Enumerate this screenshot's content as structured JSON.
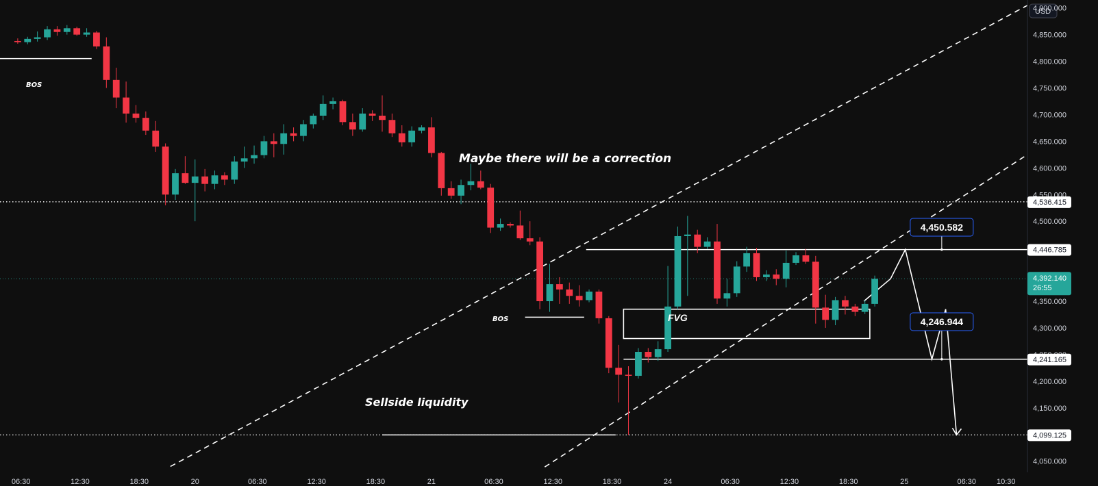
{
  "currency": "USD",
  "colors": {
    "background": "#0f0f0f",
    "up": "#26a69a",
    "down": "#f23645",
    "line": "#ffffff",
    "axis_text": "#d1d4dc",
    "label_border": "#2962ff"
  },
  "chart_data": {
    "type": "candlestick",
    "y_ticks": [
      "4,900.000",
      "4,850.000",
      "4,800.000",
      "4,750.000",
      "4,700.000",
      "4,650.000",
      "4,600.000",
      "4,550.000",
      "4,500.000",
      "4,450.000",
      "4,400.000",
      "4,350.000",
      "4,300.000",
      "4,250.000",
      "4,200.000",
      "4,150.000",
      "4,100.000",
      "4,050.000"
    ],
    "y_tick_values": [
      4900,
      4850,
      4800,
      4750,
      4700,
      4650,
      4600,
      4550,
      4500,
      4450,
      4400,
      4350,
      4300,
      4250,
      4200,
      4150,
      4100,
      4050
    ],
    "ylim": [
      4029,
      4915
    ],
    "x_ticks": [
      "06:30",
      "12:30",
      "18:30",
      "20",
      "06:30",
      "12:30",
      "18:30",
      "21",
      "06:30",
      "12:30",
      "18:30",
      "24",
      "06:30",
      "12:30",
      "18:30",
      "25",
      "06:30",
      "10:30"
    ],
    "x_tick_units": [
      0.33,
      6.33,
      12.33,
      18,
      24.33,
      30.33,
      36.33,
      42,
      48.33,
      54.33,
      60.33,
      66,
      72.33,
      78.33,
      84.33,
      90,
      96.33,
      100.33
    ],
    "xlim": [
      -1.8,
      102.5
    ],
    "candles": [
      {
        "o": 4838,
        "h": 4843,
        "l": 4833,
        "c": 4836
      },
      {
        "o": 4836,
        "h": 4846,
        "l": 4832,
        "c": 4842
      },
      {
        "o": 4842,
        "h": 4856,
        "l": 4837,
        "c": 4845
      },
      {
        "o": 4845,
        "h": 4866,
        "l": 4840,
        "c": 4860
      },
      {
        "o": 4860,
        "h": 4866,
        "l": 4848,
        "c": 4855
      },
      {
        "o": 4855,
        "h": 4868,
        "l": 4850,
        "c": 4862
      },
      {
        "o": 4862,
        "h": 4865,
        "l": 4848,
        "c": 4850
      },
      {
        "o": 4850,
        "h": 4862,
        "l": 4846,
        "c": 4854
      },
      {
        "o": 4854,
        "h": 4857,
        "l": 4823,
        "c": 4828
      },
      {
        "o": 4828,
        "h": 4845,
        "l": 4750,
        "c": 4765
      },
      {
        "o": 4765,
        "h": 4788,
        "l": 4712,
        "c": 4732
      },
      {
        "o": 4732,
        "h": 4762,
        "l": 4685,
        "c": 4702
      },
      {
        "o": 4702,
        "h": 4718,
        "l": 4685,
        "c": 4694
      },
      {
        "o": 4694,
        "h": 4706,
        "l": 4662,
        "c": 4670
      },
      {
        "o": 4670,
        "h": 4688,
        "l": 4630,
        "c": 4640
      },
      {
        "o": 4640,
        "h": 4646,
        "l": 4530,
        "c": 4550
      },
      {
        "o": 4550,
        "h": 4598,
        "l": 4540,
        "c": 4590
      },
      {
        "o": 4590,
        "h": 4622,
        "l": 4570,
        "c": 4572
      },
      {
        "o": 4572,
        "h": 4616,
        "l": 4500,
        "c": 4584
      },
      {
        "o": 4584,
        "h": 4598,
        "l": 4556,
        "c": 4570
      },
      {
        "o": 4570,
        "h": 4595,
        "l": 4560,
        "c": 4586
      },
      {
        "o": 4586,
        "h": 4592,
        "l": 4568,
        "c": 4578
      },
      {
        "o": 4578,
        "h": 4622,
        "l": 4570,
        "c": 4612
      },
      {
        "o": 4612,
        "h": 4640,
        "l": 4600,
        "c": 4618
      },
      {
        "o": 4618,
        "h": 4642,
        "l": 4608,
        "c": 4624
      },
      {
        "o": 4624,
        "h": 4660,
        "l": 4618,
        "c": 4650
      },
      {
        "o": 4650,
        "h": 4665,
        "l": 4620,
        "c": 4645
      },
      {
        "o": 4645,
        "h": 4682,
        "l": 4625,
        "c": 4665
      },
      {
        "o": 4665,
        "h": 4676,
        "l": 4650,
        "c": 4660
      },
      {
        "o": 4660,
        "h": 4690,
        "l": 4650,
        "c": 4682
      },
      {
        "o": 4682,
        "h": 4702,
        "l": 4674,
        "c": 4698
      },
      {
        "o": 4698,
        "h": 4736,
        "l": 4690,
        "c": 4720
      },
      {
        "o": 4720,
        "h": 4732,
        "l": 4710,
        "c": 4725
      },
      {
        "o": 4725,
        "h": 4728,
        "l": 4680,
        "c": 4686
      },
      {
        "o": 4686,
        "h": 4702,
        "l": 4660,
        "c": 4672
      },
      {
        "o": 4672,
        "h": 4712,
        "l": 4668,
        "c": 4702
      },
      {
        "o": 4702,
        "h": 4708,
        "l": 4688,
        "c": 4698
      },
      {
        "o": 4698,
        "h": 4736,
        "l": 4668,
        "c": 4690
      },
      {
        "o": 4690,
        "h": 4702,
        "l": 4658,
        "c": 4665
      },
      {
        "o": 4665,
        "h": 4680,
        "l": 4640,
        "c": 4648
      },
      {
        "o": 4648,
        "h": 4678,
        "l": 4640,
        "c": 4670
      },
      {
        "o": 4670,
        "h": 4680,
        "l": 4665,
        "c": 4676
      },
      {
        "o": 4676,
        "h": 4695,
        "l": 4620,
        "c": 4628
      },
      {
        "o": 4628,
        "h": 4630,
        "l": 4548,
        "c": 4562
      },
      {
        "o": 4562,
        "h": 4575,
        "l": 4542,
        "c": 4548
      },
      {
        "o": 4548,
        "h": 4578,
        "l": 4532,
        "c": 4568
      },
      {
        "o": 4568,
        "h": 4608,
        "l": 4558,
        "c": 4575
      },
      {
        "o": 4575,
        "h": 4595,
        "l": 4560,
        "c": 4563
      },
      {
        "o": 4563,
        "h": 4570,
        "l": 4478,
        "c": 4488
      },
      {
        "o": 4488,
        "h": 4505,
        "l": 4482,
        "c": 4495
      },
      {
        "o": 4495,
        "h": 4498,
        "l": 4488,
        "c": 4492
      },
      {
        "o": 4492,
        "h": 4520,
        "l": 4465,
        "c": 4468
      },
      {
        "o": 4468,
        "h": 4500,
        "l": 4455,
        "c": 4462
      },
      {
        "o": 4462,
        "h": 4470,
        "l": 4335,
        "c": 4350
      },
      {
        "o": 4350,
        "h": 4420,
        "l": 4330,
        "c": 4382
      },
      {
        "o": 4382,
        "h": 4395,
        "l": 4345,
        "c": 4372
      },
      {
        "o": 4372,
        "h": 4385,
        "l": 4345,
        "c": 4360
      },
      {
        "o": 4360,
        "h": 4380,
        "l": 4340,
        "c": 4352
      },
      {
        "o": 4352,
        "h": 4372,
        "l": 4348,
        "c": 4368
      },
      {
        "o": 4368,
        "h": 4372,
        "l": 4308,
        "c": 4318
      },
      {
        "o": 4318,
        "h": 4322,
        "l": 4215,
        "c": 4225
      },
      {
        "o": 4225,
        "h": 4268,
        "l": 4160,
        "c": 4212
      },
      {
        "o": 4212,
        "h": 4228,
        "l": 4099,
        "c": 4210
      },
      {
        "o": 4210,
        "h": 4262,
        "l": 4205,
        "c": 4255
      },
      {
        "o": 4255,
        "h": 4262,
        "l": 4235,
        "c": 4245
      },
      {
        "o": 4245,
        "h": 4275,
        "l": 4238,
        "c": 4260
      },
      {
        "o": 4260,
        "h": 4416,
        "l": 4255,
        "c": 4340
      },
      {
        "o": 4340,
        "h": 4490,
        "l": 4335,
        "c": 4472
      },
      {
        "o": 4472,
        "h": 4510,
        "l": 4360,
        "c": 4475
      },
      {
        "o": 4475,
        "h": 4484,
        "l": 4440,
        "c": 4452
      },
      {
        "o": 4452,
        "h": 4470,
        "l": 4448,
        "c": 4462
      },
      {
        "o": 4462,
        "h": 4495,
        "l": 4345,
        "c": 4355
      },
      {
        "o": 4355,
        "h": 4392,
        "l": 4340,
        "c": 4365
      },
      {
        "o": 4365,
        "h": 4425,
        "l": 4358,
        "c": 4415
      },
      {
        "o": 4415,
        "h": 4452,
        "l": 4405,
        "c": 4440
      },
      {
        "o": 4440,
        "h": 4450,
        "l": 4388,
        "c": 4395
      },
      {
        "o": 4395,
        "h": 4408,
        "l": 4388,
        "c": 4400
      },
      {
        "o": 4400,
        "h": 4410,
        "l": 4380,
        "c": 4392
      },
      {
        "o": 4392,
        "h": 4445,
        "l": 4376,
        "c": 4422
      },
      {
        "o": 4422,
        "h": 4442,
        "l": 4418,
        "c": 4436
      },
      {
        "o": 4436,
        "h": 4448,
        "l": 4420,
        "c": 4424
      },
      {
        "o": 4424,
        "h": 4435,
        "l": 4308,
        "c": 4338
      },
      {
        "o": 4338,
        "h": 4362,
        "l": 4300,
        "c": 4315
      },
      {
        "o": 4315,
        "h": 4358,
        "l": 4305,
        "c": 4352
      },
      {
        "o": 4352,
        "h": 4360,
        "l": 4325,
        "c": 4340
      },
      {
        "o": 4340,
        "h": 4345,
        "l": 4322,
        "c": 4330
      },
      {
        "o": 4330,
        "h": 4352,
        "l": 4326,
        "c": 4345
      },
      {
        "o": 4345,
        "h": 4398,
        "l": 4340,
        "c": 4392
      }
    ],
    "horizontal_levels": [
      {
        "price": 4536.415,
        "label": "4,536.415",
        "style": "dotted"
      },
      {
        "price": 4446.785,
        "label": "4,446.785",
        "style": "solid"
      },
      {
        "price": 4392.14,
        "label": "4,392.140",
        "style": "current"
      },
      {
        "price": 4241.165,
        "label": "4,241.165",
        "style": "solid"
      },
      {
        "price": 4099.125,
        "label": "4,099.125",
        "style": "dotted"
      }
    ],
    "countdown": "26:55",
    "price_callouts": [
      {
        "label": "4,450.582",
        "price": 4450.582
      },
      {
        "label": "4,246.944",
        "price": 4246.944
      }
    ],
    "annotations": {
      "correction": "Maybe there will be a correction",
      "sellside": "Sellside liquidity",
      "bos_left": "BOS",
      "bos_mid": "BOS",
      "fvg": "FVG"
    },
    "bos_levels": [
      {
        "price": 4805,
        "x_from": -1.8,
        "x_to": 7.5
      },
      {
        "price": 4320,
        "x_from": 51.5,
        "x_to": 57.5
      }
    ],
    "fvg_box": {
      "x_from": 61.5,
      "x_to": 86.5,
      "price_top": 4335,
      "price_bottom": 4280
    },
    "channel_lines": [
      {
        "x1": 15.5,
        "p1": 4040,
        "x2": 102.5,
        "p2": 4905
      },
      {
        "x1": 53.5,
        "p1": 4039,
        "x2": 102.5,
        "p2": 4625
      }
    ],
    "sellside_line": {
      "x_from": 37,
      "x_to": 60.7,
      "price": 4099.125
    },
    "projection": [
      [
        85.9,
        4350
      ],
      [
        88.6,
        4392
      ],
      [
        90.1,
        4446.785
      ],
      [
        92.8,
        4241.165
      ],
      [
        94.2,
        4335
      ],
      [
        95.3,
        4099.125
      ]
    ],
    "callout_stems": [
      {
        "x": 93.8,
        "from": 4460,
        "to": 4446.785
      },
      {
        "x": 93.8,
        "from": 4265,
        "to": 4241.165
      }
    ]
  }
}
